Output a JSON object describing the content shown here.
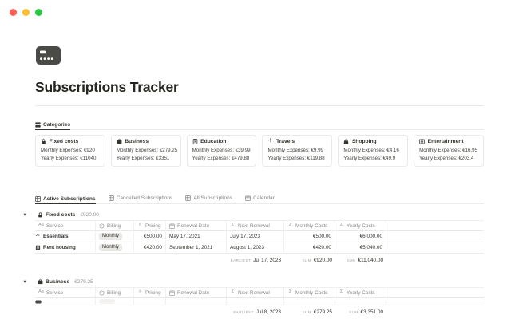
{
  "theme": {
    "text": "#37352f",
    "secondary_text": "#83827e",
    "border": "#e9e9e7",
    "pill_bg": "#e9e8e5",
    "icon_dark": "#4a4a46"
  },
  "window": {
    "controls": [
      {
        "name": "close-button",
        "color": "#ff5f57"
      },
      {
        "name": "minimize-button",
        "color": "#febc2e"
      },
      {
        "name": "zoom-button",
        "color": "#28c840"
      }
    ]
  },
  "page": {
    "icon": "credit-card-icon",
    "title": "Subscriptions Tracker"
  },
  "categories": {
    "tab": {
      "icon": "grid-icon",
      "label": "Categories"
    },
    "cards": [
      {
        "icon": "lock-icon",
        "name": "Fixed costs",
        "monthly": "Monthly Expenses: €920",
        "yearly": "Yearly Expenses: €11040"
      },
      {
        "icon": "briefcase-icon",
        "name": "Business",
        "monthly": "Monthly Expenses: €279.25",
        "yearly": "Yearly Expenses: €3351"
      },
      {
        "icon": "book-icon",
        "name": "Education",
        "monthly": "Monthly Expenses: €39.99",
        "yearly": "Yearly Expenses: €479.88"
      },
      {
        "icon": "plane-icon",
        "name": "Travels",
        "monthly": "Monthly Expenses: €9.99",
        "yearly": "Yearly Expenses: €119.88"
      },
      {
        "icon": "bag-icon",
        "name": "Shopping",
        "monthly": "Monthly Expenses: €4.16",
        "yearly": "Yearly Expenses: €49.9"
      },
      {
        "icon": "film-icon",
        "name": "Entertainment",
        "monthly": "Monthly Expenses: €16.95",
        "yearly": "Yearly Expenses: €203.4"
      }
    ]
  },
  "view_tabs": [
    {
      "icon": "table-icon",
      "label": "Active Subscriptions",
      "active": true
    },
    {
      "icon": "table-icon",
      "label": "Cancelled Subscriptions",
      "active": false
    },
    {
      "icon": "table-icon",
      "label": "All Subscriptions",
      "active": false
    },
    {
      "icon": "calendar-icon",
      "label": "Calendar",
      "active": false
    }
  ],
  "table": {
    "columns": [
      {
        "icon": "text-icon",
        "label": "Service"
      },
      {
        "icon": "select-icon",
        "label": "Billing"
      },
      {
        "icon": "number-icon",
        "label": "Pricing"
      },
      {
        "icon": "calendar-icon",
        "label": "Renewal Date"
      },
      {
        "icon": "formula-icon",
        "label": "Next Renewal"
      },
      {
        "icon": "formula-icon",
        "label": "Monthly Costs"
      },
      {
        "icon": "formula-icon",
        "label": "Yearly Costs"
      }
    ],
    "groups": [
      {
        "toggle_icon": "chevron-down-icon",
        "icon": "lock-icon",
        "name": "Fixed costs",
        "total": "€920.00",
        "rows": [
          {
            "icon": "scissors-icon",
            "service": "Essentials",
            "billing": "Monthly",
            "pricing": "€500.00",
            "renewal_date": "May 17, 2021",
            "next_renewal": "July 17, 2023",
            "monthly_costs": "€500.00",
            "yearly_costs": "€6,000.00"
          },
          {
            "icon": "building-icon",
            "service": "Rent housing",
            "billing": "Monthly",
            "pricing": "€420.00",
            "renewal_date": "September 1, 2021",
            "next_renewal": "August 1, 2023",
            "monthly_costs": "€420.00",
            "yearly_costs": "€5,040.00"
          }
        ],
        "partial_row": null,
        "footer": {
          "earliest_label": "EARLIEST",
          "earliest_value": "Jul 17, 2023",
          "monthly_sum_label": "SUM",
          "monthly_sum_value": "€920.00",
          "yearly_sum_label": "SUM",
          "yearly_sum_value": "€11,040.00"
        }
      },
      {
        "toggle_icon": "chevron-down-icon",
        "icon": "briefcase-icon",
        "name": "Business",
        "total": "€279.25",
        "rows": [],
        "partial_row": {
          "icon": "row-stub-icon"
        },
        "footer": {
          "earliest_label": "EARLIEST",
          "earliest_value": "Jul 8, 2023",
          "monthly_sum_label": "SUM",
          "monthly_sum_value": "€279.25",
          "yearly_sum_label": "SUM",
          "yearly_sum_value": "€3,351.00"
        }
      }
    ]
  }
}
